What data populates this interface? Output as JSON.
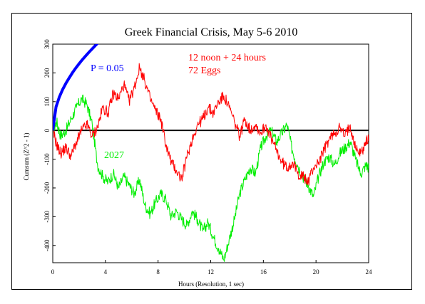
{
  "chart_data": {
    "type": "line",
    "title": "Greek Financial Crisis, May 5-6 2010",
    "xlabel": "Hours (Resolution, 1 sec)",
    "ylabel": "Cumsum (Z^2 - 1)",
    "xlim": [
      0,
      24
    ],
    "ylim": [
      -460,
      300
    ],
    "xticks": [
      0,
      4,
      8,
      12,
      16,
      20,
      24
    ],
    "yticks": [
      300,
      200,
      100,
      0,
      -100,
      -200,
      -300,
      -400
    ],
    "grid": false,
    "annotations": {
      "probability": "P = 0.05",
      "window": "12 noon + 24 hours",
      "eggs": "72 Eggs",
      "green_label": "2027"
    },
    "colors": {
      "probability": "#0000ff",
      "red": "#ff0000",
      "green": "#00ee00",
      "zero_line": "#000000"
    },
    "series": [
      {
        "x": [
          0,
          0.3,
          0.6,
          1.0,
          1.4,
          1.8,
          2.2,
          2.6,
          3.0,
          3.4,
          3.8,
          4.2,
          4.6,
          5.0,
          5.4,
          5.8,
          6.2,
          6.6,
          7.0,
          7.4,
          7.8,
          8.2,
          8.6,
          9.0,
          9.4,
          9.8,
          10.2,
          10.6,
          11.0,
          11.4,
          11.8,
          12.2,
          12.6,
          13.0,
          13.4,
          13.8,
          14.2,
          14.6,
          15.0,
          15.4,
          15.8,
          16.2,
          16.6,
          17.0,
          17.4,
          17.8,
          18.2,
          18.6,
          19.0,
          19.4,
          19.8,
          20.2,
          20.6,
          21.0,
          21.4,
          21.8,
          22.2,
          22.6,
          23.0,
          23.4,
          23.8,
          24.0
        ],
        "y": [
          0,
          -50,
          -80,
          -60,
          -90,
          -40,
          0,
          20,
          -20,
          10,
          80,
          60,
          130,
          110,
          160,
          100,
          150,
          220,
          170,
          110,
          70,
          40,
          -50,
          -110,
          -140,
          -170,
          -90,
          -30,
          20,
          40,
          80,
          60,
          100,
          120,
          80,
          30,
          -20,
          40,
          0,
          20,
          -10,
          20,
          -30,
          -70,
          -110,
          -130,
          -110,
          -150,
          -160,
          -180,
          -130,
          -110,
          -70,
          -30,
          -10,
          10,
          -20,
          20,
          -60,
          -80,
          -40,
          -30
        ]
      },
      {
        "x": [
          0,
          0.3,
          0.6,
          1.0,
          1.4,
          1.8,
          2.2,
          2.6,
          3.0,
          3.4,
          3.8,
          4.2,
          4.6,
          5.0,
          5.4,
          5.8,
          6.2,
          6.6,
          7.0,
          7.4,
          7.8,
          8.2,
          8.6,
          9.0,
          9.4,
          9.8,
          10.2,
          10.6,
          11.0,
          11.4,
          11.8,
          12.2,
          12.6,
          13.0,
          13.4,
          13.8,
          14.2,
          14.6,
          15.0,
          15.4,
          15.8,
          16.2,
          16.6,
          17.0,
          17.4,
          17.8,
          18.2,
          18.6,
          19.0,
          19.4,
          19.8,
          20.2,
          20.6,
          21.0,
          21.4,
          21.8,
          22.2,
          22.6,
          23.0,
          23.4,
          23.8,
          24.0
        ],
        "y": [
          0,
          30,
          -20,
          0,
          40,
          80,
          110,
          90,
          20,
          -120,
          -160,
          -180,
          -150,
          -200,
          -160,
          -190,
          -220,
          -170,
          -260,
          -290,
          -250,
          -220,
          -240,
          -300,
          -280,
          -310,
          -330,
          -280,
          -310,
          -350,
          -320,
          -370,
          -410,
          -450,
          -380,
          -310,
          -220,
          -170,
          -130,
          -150,
          -60,
          -20,
          0,
          -40,
          -10,
          20,
          -70,
          -120,
          -160,
          -190,
          -230,
          -160,
          -110,
          -90,
          -120,
          -80,
          -60,
          -40,
          -100,
          -150,
          -120,
          -130
        ]
      },
      {
        "x": [
          0,
          0.25,
          0.5,
          0.75,
          1.0,
          1.25,
          1.5,
          1.75,
          2.0,
          2.25,
          2.5,
          2.75,
          3.0,
          3.25,
          3.5,
          3.75,
          4.0,
          4.25,
          4.5,
          4.5
        ],
        "y": [
          0,
          82,
          116,
          142,
          164,
          183,
          201,
          217,
          232,
          246,
          259,
          272,
          284,
          296,
          307,
          318,
          328,
          338,
          348,
          348
        ]
      }
    ]
  }
}
